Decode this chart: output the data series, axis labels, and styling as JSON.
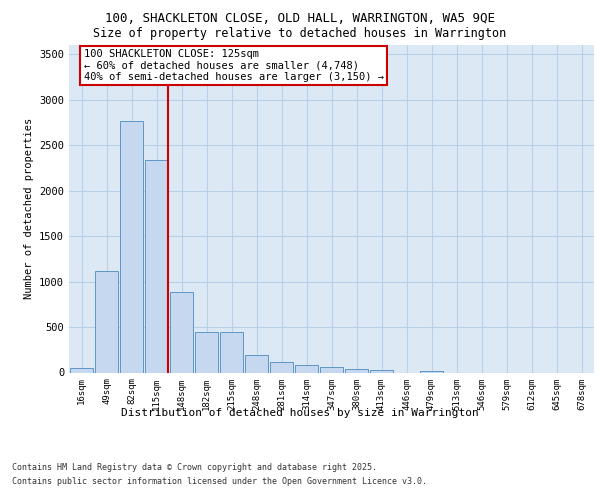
{
  "title_line1": "100, SHACKLETON CLOSE, OLD HALL, WARRINGTON, WA5 9QE",
  "title_line2": "Size of property relative to detached houses in Warrington",
  "xlabel": "Distribution of detached houses by size in Warrington",
  "ylabel": "Number of detached properties",
  "categories": [
    "16sqm",
    "49sqm",
    "82sqm",
    "115sqm",
    "148sqm",
    "182sqm",
    "215sqm",
    "248sqm",
    "281sqm",
    "314sqm",
    "347sqm",
    "380sqm",
    "413sqm",
    "446sqm",
    "479sqm",
    "513sqm",
    "546sqm",
    "579sqm",
    "612sqm",
    "645sqm",
    "678sqm"
  ],
  "values": [
    50,
    1120,
    2770,
    2340,
    880,
    450,
    450,
    195,
    110,
    80,
    55,
    40,
    25,
    0,
    15,
    0,
    0,
    0,
    0,
    0,
    0
  ],
  "bar_color": "#c5d8f0",
  "bar_edge_color": "#4d8bbf",
  "vline_index": 3,
  "vline_color": "#cc0000",
  "annotation_title": "100 SHACKLETON CLOSE: 125sqm",
  "annotation_line2": "← 60% of detached houses are smaller (4,748)",
  "annotation_line3": "40% of semi-detached houses are larger (3,150) →",
  "annotation_box_color": "#cc0000",
  "annotation_bg_color": "#ffffff",
  "ylim": [
    0,
    3600
  ],
  "yticks": [
    0,
    500,
    1000,
    1500,
    2000,
    2500,
    3000,
    3500
  ],
  "bg_color": "#dce9f5",
  "grid_color": "#b8cfe8",
  "footnote_line1": "Contains HM Land Registry data © Crown copyright and database right 2025.",
  "footnote_line2": "Contains public sector information licensed under the Open Government Licence v3.0."
}
